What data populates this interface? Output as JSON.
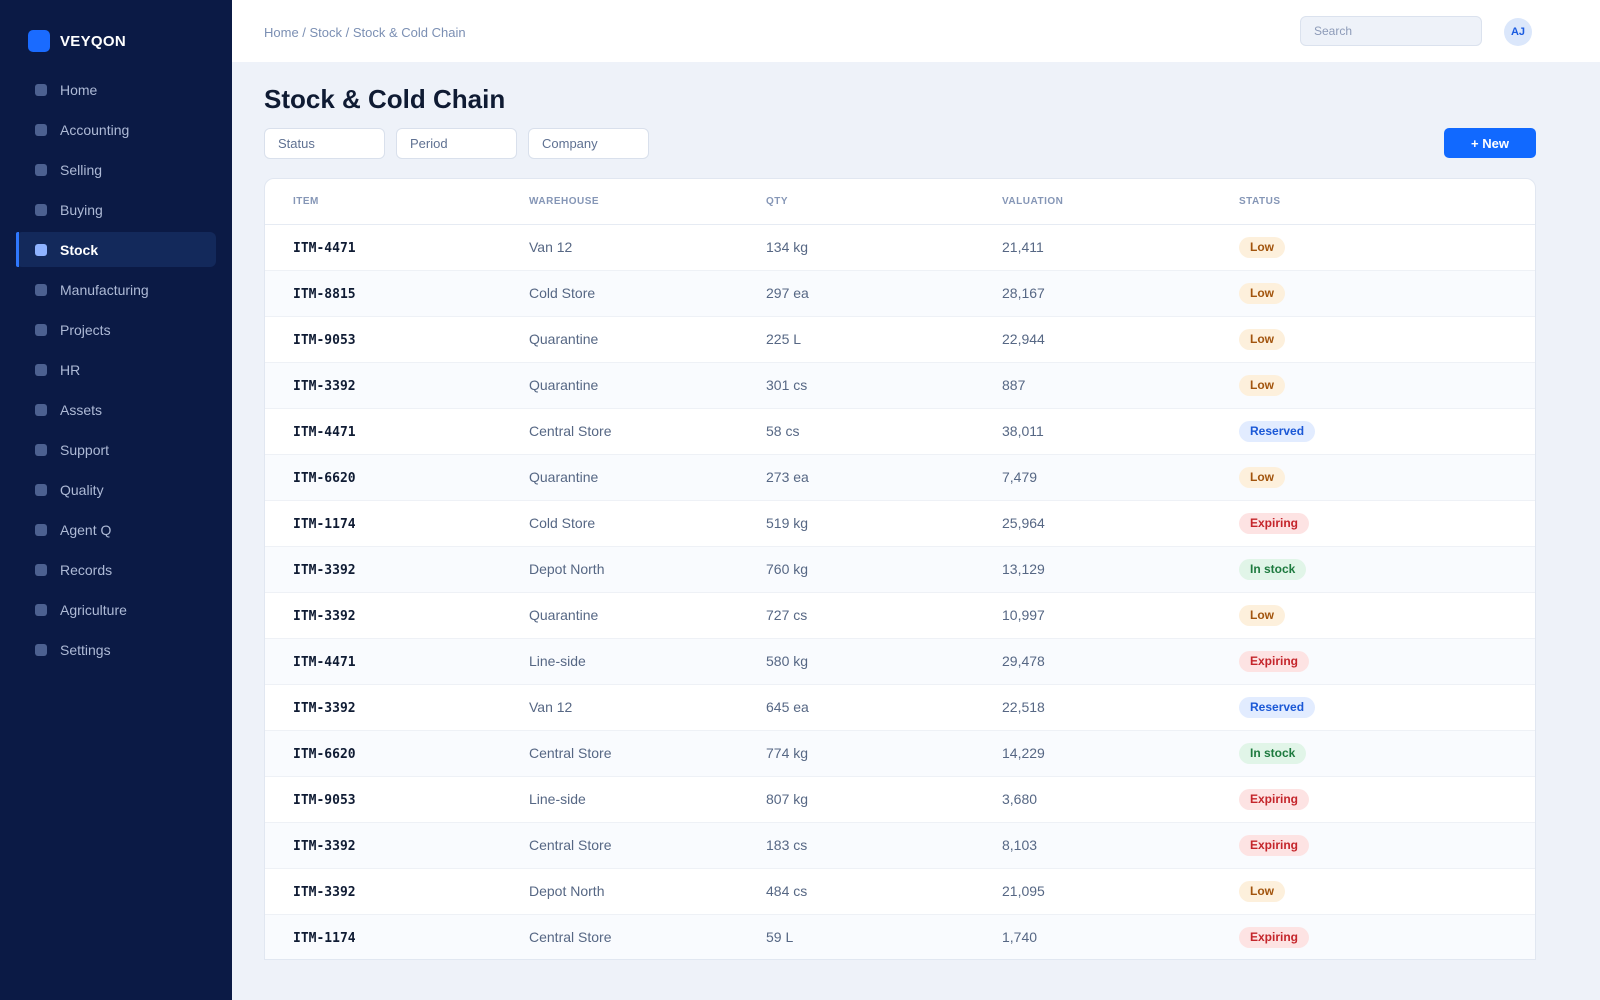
{
  "brand": {
    "name": "VEYQON"
  },
  "sidebar": {
    "items": [
      {
        "label": "Home",
        "active": false
      },
      {
        "label": "Accounting",
        "active": false
      },
      {
        "label": "Selling",
        "active": false
      },
      {
        "label": "Buying",
        "active": false
      },
      {
        "label": "Stock",
        "active": true
      },
      {
        "label": "Manufacturing",
        "active": false
      },
      {
        "label": "Projects",
        "active": false
      },
      {
        "label": "HR",
        "active": false
      },
      {
        "label": "Assets",
        "active": false
      },
      {
        "label": "Support",
        "active": false
      },
      {
        "label": "Quality",
        "active": false
      },
      {
        "label": "Agent Q",
        "active": false
      },
      {
        "label": "Records",
        "active": false
      },
      {
        "label": "Agriculture",
        "active": false
      },
      {
        "label": "Settings",
        "active": false
      }
    ]
  },
  "header": {
    "breadcrumb": "Home / Stock / Stock & Cold Chain",
    "search_placeholder": "Search",
    "avatar_initials": "AJ"
  },
  "page": {
    "title": "Stock & Cold Chain",
    "filters": [
      "Status",
      "Period",
      "Company"
    ],
    "new_button": "+ New"
  },
  "table": {
    "columns": [
      "ITEM",
      "WAREHOUSE",
      "QTY",
      "VALUATION",
      "STATUS"
    ],
    "rows": [
      {
        "item": "ITM-4471",
        "warehouse": "Van 12",
        "qty": "134 kg",
        "valuation": "21,411",
        "status": "Low"
      },
      {
        "item": "ITM-8815",
        "warehouse": "Cold Store",
        "qty": "297 ea",
        "valuation": "28,167",
        "status": "Low"
      },
      {
        "item": "ITM-9053",
        "warehouse": "Quarantine",
        "qty": "225 L",
        "valuation": "22,944",
        "status": "Low"
      },
      {
        "item": "ITM-3392",
        "warehouse": "Quarantine",
        "qty": "301 cs",
        "valuation": "887",
        "status": "Low"
      },
      {
        "item": "ITM-4471",
        "warehouse": "Central Store",
        "qty": "58 cs",
        "valuation": "38,011",
        "status": "Reserved"
      },
      {
        "item": "ITM-6620",
        "warehouse": "Quarantine",
        "qty": "273 ea",
        "valuation": "7,479",
        "status": "Low"
      },
      {
        "item": "ITM-1174",
        "warehouse": "Cold Store",
        "qty": "519 kg",
        "valuation": "25,964",
        "status": "Expiring"
      },
      {
        "item": "ITM-3392",
        "warehouse": "Depot North",
        "qty": "760 kg",
        "valuation": "13,129",
        "status": "In stock"
      },
      {
        "item": "ITM-3392",
        "warehouse": "Quarantine",
        "qty": "727 cs",
        "valuation": "10,997",
        "status": "Low"
      },
      {
        "item": "ITM-4471",
        "warehouse": "Line-side",
        "qty": "580 kg",
        "valuation": "29,478",
        "status": "Expiring"
      },
      {
        "item": "ITM-3392",
        "warehouse": "Van 12",
        "qty": "645 ea",
        "valuation": "22,518",
        "status": "Reserved"
      },
      {
        "item": "ITM-6620",
        "warehouse": "Central Store",
        "qty": "774 kg",
        "valuation": "14,229",
        "status": "In stock"
      },
      {
        "item": "ITM-9053",
        "warehouse": "Line-side",
        "qty": "807 kg",
        "valuation": "3,680",
        "status": "Expiring"
      },
      {
        "item": "ITM-3392",
        "warehouse": "Central Store",
        "qty": "183 cs",
        "valuation": "8,103",
        "status": "Expiring"
      },
      {
        "item": "ITM-3392",
        "warehouse": "Depot North",
        "qty": "484 cs",
        "valuation": "21,095",
        "status": "Low"
      },
      {
        "item": "ITM-1174",
        "warehouse": "Central Store",
        "qty": "59 L",
        "valuation": "1,740",
        "status": "Expiring"
      }
    ]
  },
  "colors": {
    "sidebar_bg": "#0b1a45",
    "accent": "#1169ff",
    "status_low": "#a2540d",
    "status_reserved": "#1b58d6",
    "status_expiring": "#c4252b",
    "status_in_stock": "#1d7a3e"
  }
}
